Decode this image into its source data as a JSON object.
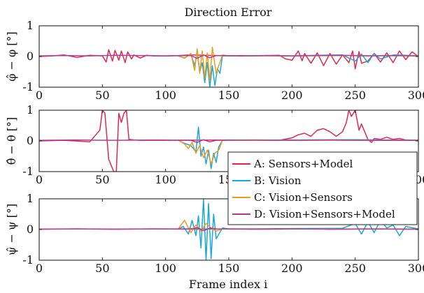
{
  "chart_data": {
    "type": "line",
    "title": "Direction Error",
    "xlabel": "Frame index i",
    "xlim": [
      0,
      300
    ],
    "x_ticks": [
      0,
      50,
      100,
      150,
      200,
      250,
      300
    ],
    "legend": {
      "placement": "right",
      "entries": [
        {
          "name": "A: Sensors+Model",
          "color": "#e0284f"
        },
        {
          "name": "B: Vision",
          "color": "#1aa7dc"
        },
        {
          "name": "C: Vision+Sensors",
          "color": "#f09a1a"
        },
        {
          "name": "D: Vision+Sensors+Model",
          "color": "#b03a9a"
        }
      ]
    },
    "panels": [
      {
        "ylabel": "φ̂ − φ [°]",
        "ylim": [
          -1,
          1
        ],
        "y_ticks": [
          "1",
          "0",
          "-1"
        ],
        "series": [
          {
            "name": "A: Sensors+Model",
            "color": "#e0284f",
            "x": [
              0,
              10,
              20,
              30,
              40,
              50,
              53,
              55,
              58,
              60,
              63,
              65,
              68,
              70,
              73,
              75,
              80,
              85,
              90,
              100,
              110,
              120,
              130,
              140,
              150,
              160,
              170,
              180,
              190,
              195,
              200,
              205,
              208,
              210,
              215,
              220,
              225,
              230,
              235,
              240,
              245,
              248,
              250,
              253,
              255,
              260,
              265,
              270,
              275,
              280,
              285,
              290,
              295,
              300
            ],
            "y": [
              0,
              0.02,
              0.05,
              -0.03,
              0.04,
              0.02,
              -0.18,
              0.22,
              -0.15,
              0.2,
              -0.12,
              0.18,
              -0.2,
              0.15,
              -0.08,
              0.05,
              -0.05,
              0.04,
              0.02,
              0.02,
              0.03,
              0.05,
              0.04,
              0.03,
              0.02,
              0.03,
              0.02,
              0.03,
              0.04,
              -0.08,
              -0.12,
              0.18,
              -0.14,
              0.1,
              -0.22,
              0.12,
              -0.3,
              0.1,
              -0.25,
              0.05,
              -0.2,
              0.18,
              -0.4,
              0.16,
              -0.22,
              -0.15,
              0.1,
              -0.18,
              0.12,
              -0.2,
              0.18,
              -0.1,
              0.15,
              0
            ]
          },
          {
            "name": "B: Vision",
            "color": "#1aa7dc",
            "x": [
              110,
              115,
              120,
              123,
              125,
              127,
              129,
              131,
              133,
              135,
              137,
              139,
              141,
              143,
              145,
              150,
              160,
              180,
              200,
              220,
              240,
              250,
              255,
              260,
              265,
              270,
              280,
              290,
              300
            ],
            "y": [
              0.02,
              -0.05,
              0.08,
              -0.3,
              0.15,
              -0.5,
              -0.2,
              -0.85,
              -0.2,
              -1.0,
              -0.3,
              -0.95,
              -0.4,
              -0.55,
              0.02,
              0.03,
              0.02,
              0.03,
              0.02,
              0.04,
              0.05,
              -0.15,
              0.08,
              -0.2,
              0.1,
              -0.08,
              0.05,
              0.04,
              0.02
            ]
          },
          {
            "name": "C: Vision+Sensors",
            "color": "#f09a1a",
            "x": [
              110,
              115,
              120,
              123,
              125,
              127,
              129,
              131,
              133,
              135,
              137,
              140,
              145,
              150,
              160,
              200,
              250,
              300
            ],
            "y": [
              0.03,
              -0.06,
              0.1,
              -0.45,
              0.25,
              -0.55,
              0.18,
              -0.7,
              0.12,
              -0.8,
              0.3,
              -0.55,
              0.05,
              0.02,
              0.02,
              0.02,
              0.03,
              0.02
            ]
          },
          {
            "name": "D: Vision+Sensors+Model",
            "color": "#b03a9a",
            "x": [
              0,
              20,
              40,
              60,
              80,
              100,
              120,
              125,
              130,
              135,
              140,
              160,
              180,
              200,
              220,
              240,
              260,
              280,
              300
            ],
            "y": [
              0.02,
              0.03,
              0.02,
              0.04,
              0.03,
              0.02,
              0.03,
              -0.06,
              0.05,
              -0.04,
              0.03,
              0.02,
              0.03,
              0.02,
              0.03,
              0.04,
              0.02,
              0.03,
              0.02
            ]
          }
        ]
      },
      {
        "ylabel": "θ̂ − θ [°]",
        "ylim": [
          -1,
          1
        ],
        "y_ticks": [
          "1",
          "0",
          "-1"
        ],
        "series": [
          {
            "name": "A: Sensors+Model",
            "color": "#e0284f",
            "x": [
              0,
              20,
              40,
              48,
              50,
              52,
              55,
              57,
              59,
              61,
              63,
              65,
              67,
              69,
              71,
              75,
              80,
              100,
              150,
              190,
              200,
              205,
              210,
              215,
              220,
              225,
              230,
              235,
              240,
              243,
              245,
              247,
              250,
              253,
              255,
              258,
              260,
              263,
              265,
              270,
              275,
              280,
              285,
              290,
              300
            ],
            "y": [
              0,
              0.02,
              -0.03,
              0.35,
              1.0,
              0.9,
              -0.6,
              -0.8,
              -1.0,
              -1.0,
              0.9,
              0.6,
              0.9,
              1.0,
              0.05,
              0.03,
              0.02,
              0.02,
              0.03,
              0.02,
              0.1,
              0.2,
              0.25,
              0.15,
              0.35,
              0.4,
              0.3,
              0.15,
              0.3,
              0.6,
              1.0,
              0.8,
              1.0,
              0.35,
              0.55,
              0.25,
              0.05,
              -0.05,
              0.08,
              0.05,
              0.12,
              0.05,
              0.08,
              0.03,
              0.02
            ]
          },
          {
            "name": "B: Vision",
            "color": "#1aa7dc",
            "x": [
              110,
              115,
              120,
              124,
              126,
              128,
              130,
              132,
              134,
              136,
              138,
              140,
              142,
              145,
              150,
              160,
              200,
              250,
              300
            ],
            "y": [
              0.02,
              -0.08,
              -0.15,
              -0.35,
              0.45,
              -0.5,
              -0.2,
              -0.75,
              -0.3,
              -0.9,
              -0.4,
              -0.7,
              -0.2,
              0.02,
              0.03,
              0.02,
              0.03,
              0.04,
              0.02
            ]
          },
          {
            "name": "C: Vision+Sensors",
            "color": "#f09a1a",
            "x": [
              110,
              115,
              118,
              121,
              124,
              127,
              130,
              133,
              136,
              139,
              142,
              145,
              150,
              200,
              300
            ],
            "y": [
              0.03,
              -0.1,
              -0.25,
              -0.05,
              -0.4,
              -0.15,
              -0.55,
              -0.3,
              -0.75,
              -0.4,
              -0.3,
              0.02,
              0.02,
              0.02,
              0.02
            ]
          },
          {
            "name": "D: Vision+Sensors+Model",
            "color": "#b03a9a",
            "x": [
              0,
              30,
              60,
              90,
              120,
              125,
              130,
              135,
              140,
              170,
              200,
              230,
              260,
              300
            ],
            "y": [
              0.02,
              0.03,
              0.02,
              0.03,
              0.02,
              -0.05,
              0.04,
              -0.03,
              0.02,
              0.03,
              0.02,
              0.03,
              0.02,
              0.02
            ]
          }
        ]
      },
      {
        "ylabel": "ψ̂ − ψ [°]",
        "ylim": [
          -1,
          1
        ],
        "y_ticks": [
          "1",
          "0",
          "-1"
        ],
        "series": [
          {
            "name": "A: Sensors+Model",
            "color": "#e0284f",
            "x": [
              0,
              30,
              60,
              90,
              120,
              150,
              180,
              210,
              240,
              270,
              300
            ],
            "y": [
              0.01,
              0.02,
              0.01,
              0.02,
              0.01,
              0.02,
              0.01,
              0.02,
              0.01,
              0.02,
              0.01
            ]
          },
          {
            "name": "B: Vision",
            "color": "#1aa7dc",
            "x": [
              110,
              114,
              118,
              121,
              124,
              126,
              128,
              130,
              132,
              134,
              136,
              138,
              140,
              145,
              150,
              200,
              240,
              250,
              255,
              260,
              265,
              270,
              275,
              280,
              285,
              290,
              300
            ],
            "y": [
              0.02,
              0.1,
              -0.15,
              0.3,
              -0.2,
              0.45,
              -0.6,
              1.0,
              -1.0,
              0.85,
              -0.95,
              0.5,
              -0.3,
              0.05,
              0.02,
              0.03,
              0.04,
              0.2,
              -0.15,
              0.25,
              -0.1,
              0.3,
              0.05,
              0.15,
              -0.2,
              0.1,
              0.02
            ]
          },
          {
            "name": "C: Vision+Sensors",
            "color": "#f09a1a",
            "x": [
              110,
              115,
              120,
              124,
              128,
              132,
              136,
              140,
              145,
              150,
              200,
              300
            ],
            "y": [
              0.02,
              0.3,
              -0.1,
              0.15,
              -0.05,
              0.2,
              0.05,
              -0.05,
              0.02,
              0.01,
              0.02,
              0.01
            ]
          },
          {
            "name": "D: Vision+Sensors+Model",
            "color": "#b03a9a",
            "x": [
              0,
              30,
              60,
              90,
              120,
              125,
              130,
              135,
              140,
              170,
              200,
              230,
              260,
              300
            ],
            "y": [
              0.01,
              0.02,
              0.01,
              0.02,
              0.02,
              0.06,
              -0.04,
              0.05,
              0.02,
              0.01,
              0.02,
              0.01,
              0.02,
              0.01
            ]
          }
        ]
      }
    ]
  }
}
